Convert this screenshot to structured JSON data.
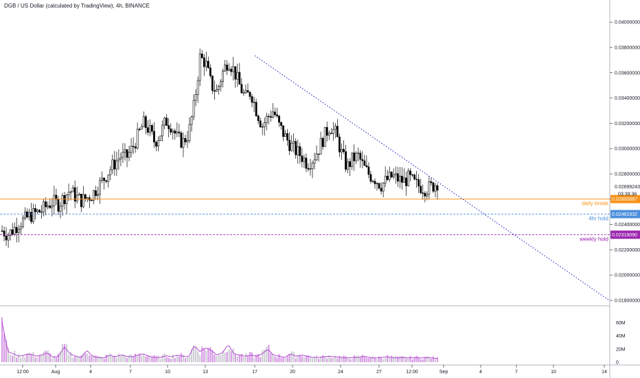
{
  "chart_title": "DGB / US Dollar (calculated by TradingView), 4h, BINANCE",
  "colors": {
    "candle": "#000000",
    "daily_break": "#f7931a",
    "hold_4hr": "#4c8fdc",
    "weekly_hold": "#9c27b0",
    "trendline": "#2f3bc9",
    "volume_up": "#cfcfd6",
    "volume_down": "#d89be6",
    "volume_ma": "#b14ad1"
  },
  "chart_data": {
    "type": "candlestick",
    "ylim": [
      0.0175,
      0.0412
    ],
    "y_ticks": [
      "0.04000000",
      "0.03800000",
      "0.03600000",
      "0.03400000",
      "0.03200000",
      "0.03000000",
      "0.02800000",
      "0.02600000",
      "0.02400000",
      "0.02200000",
      "0.02000000",
      "0.01800000"
    ],
    "y_tick_values": [
      0.04,
      0.038,
      0.036,
      0.034,
      0.032,
      0.03,
      0.028,
      0.026,
      0.024,
      0.022,
      0.02,
      0.018
    ],
    "x_ticks": [
      "12:00",
      "Aug",
      "4",
      "7",
      "10",
      "13",
      "17",
      "20",
      "24",
      "27",
      "12:00",
      "Sep",
      "4",
      "7",
      "10",
      "14"
    ],
    "current_price_label": "0.02699243",
    "countdown_label": "03:39:36",
    "price_path": [
      0.0235,
      0.0232,
      0.0236,
      0.0241,
      0.0244,
      0.0247,
      0.0249,
      0.0251,
      0.0255,
      0.0258,
      0.0256,
      0.0262,
      0.0267,
      0.0262,
      0.0259,
      0.0261,
      0.0264,
      0.027,
      0.0276,
      0.0283,
      0.0289,
      0.0294,
      0.0293,
      0.03,
      0.031,
      0.032,
      0.0315,
      0.0305,
      0.0312,
      0.0322,
      0.0318,
      0.0308,
      0.0305,
      0.0312,
      0.0335,
      0.0372,
      0.0368,
      0.035,
      0.0345,
      0.036,
      0.037,
      0.0362,
      0.035,
      0.034,
      0.0345,
      0.033,
      0.0318,
      0.0325,
      0.033,
      0.0318,
      0.031,
      0.0303,
      0.0298,
      0.0294,
      0.0288,
      0.0292,
      0.03,
      0.031,
      0.0318,
      0.0312,
      0.0297,
      0.0285,
      0.0292,
      0.0294,
      0.0285,
      0.0279,
      0.0276,
      0.0271,
      0.0275,
      0.0278,
      0.0276,
      0.0274,
      0.0277,
      0.0272,
      0.027,
      0.0268,
      0.027,
      0.0273
    ],
    "horizontal_levels": [
      {
        "name": "daily break",
        "value": 0.02600887,
        "label": "0.02600887",
        "color": "#f7931a",
        "style": "solid"
      },
      {
        "name": "4hr hold",
        "value": 0.02481932,
        "label": "0.02481932",
        "color": "#4c8fdc",
        "style": "dashed"
      },
      {
        "name": "weekly hold",
        "value": 0.0231909,
        "label": "0.02319090",
        "color": "#9c27b0",
        "style": "dashed"
      }
    ],
    "trendline": {
      "start_value": 0.03735,
      "end_value": 0.018
    },
    "volume": {
      "ticks": [
        "60M",
        "40M",
        "20M",
        "0"
      ],
      "tick_values": [
        60,
        40,
        20,
        0
      ],
      "ylim": [
        0,
        75
      ],
      "values": [
        68,
        18,
        14,
        10,
        12,
        14,
        10,
        12,
        16,
        8,
        10,
        26,
        14,
        10,
        8,
        20,
        10,
        8,
        7,
        12,
        9,
        12,
        10,
        9,
        12,
        14,
        10,
        8,
        8,
        11,
        9,
        12,
        10,
        9,
        28,
        18,
        24,
        20,
        12,
        16,
        30,
        14,
        12,
        10,
        12,
        10,
        14,
        22,
        12,
        10,
        8,
        14,
        10,
        12,
        10,
        8,
        8,
        9,
        10,
        9,
        8,
        7,
        8,
        8,
        10,
        8,
        7,
        8,
        9,
        8,
        7,
        8,
        7,
        8,
        7,
        8,
        7,
        6
      ]
    }
  }
}
